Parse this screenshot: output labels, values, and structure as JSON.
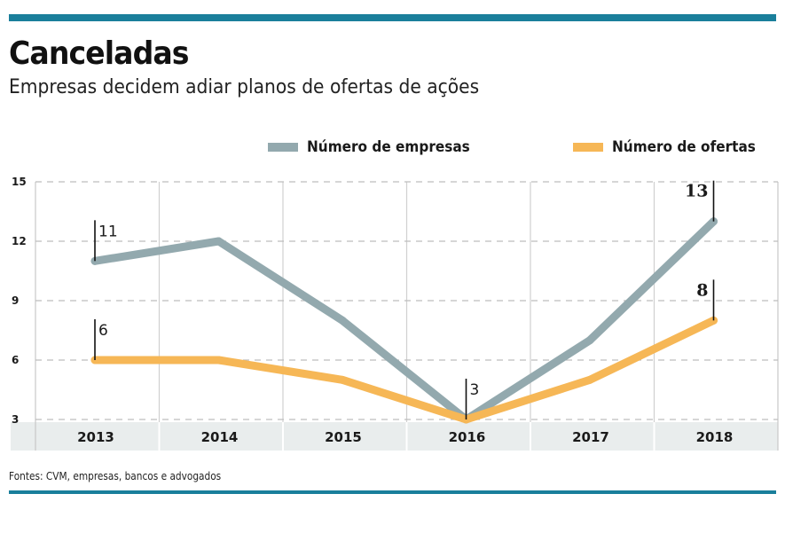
{
  "header": {
    "title": "Canceladas",
    "subtitle": "Empresas decidem adiar planos de ofertas de ações"
  },
  "legend": [
    {
      "label": "Número de empresas",
      "color": "#93a9ae"
    },
    {
      "label": "Número de ofertas",
      "color": "#f6b756"
    }
  ],
  "footer": {
    "source": "Fontes: CVM, empresas, bancos e advogados"
  },
  "colors": {
    "accent_rule": "#1a7f9b",
    "axis_band": "#e9eded",
    "gridline": "#bdbdbd"
  },
  "chart_data": {
    "type": "line",
    "title": "Canceladas",
    "subtitle": "Empresas decidem adiar planos de ofertas de ações",
    "xlabel": "",
    "ylabel": "",
    "categories": [
      "2013",
      "2014",
      "2015",
      "2016",
      "2017",
      "2018"
    ],
    "ylim": [
      3,
      15
    ],
    "yticks": [
      3,
      6,
      9,
      12,
      15
    ],
    "grid": true,
    "legend_position": "top-right",
    "series": [
      {
        "name": "Número de empresas",
        "color": "#93a9ae",
        "values": [
          11,
          12,
          8,
          3,
          7,
          13
        ]
      },
      {
        "name": "Número de ofertas",
        "color": "#f6b756",
        "values": [
          6,
          6,
          5,
          3,
          5,
          8
        ]
      }
    ],
    "annotations": [
      {
        "series": 0,
        "category": "2013",
        "text": "11",
        "style": "light",
        "side": "right"
      },
      {
        "series": 1,
        "category": "2013",
        "text": "6",
        "style": "light",
        "side": "right"
      },
      {
        "series": 0,
        "category": "2016",
        "text": "3",
        "style": "light",
        "side": "right"
      },
      {
        "series": 0,
        "category": "2018",
        "text": "13",
        "style": "bold",
        "side": "left"
      },
      {
        "series": 1,
        "category": "2018",
        "text": "8",
        "style": "bold",
        "side": "left"
      }
    ],
    "source": "Fontes: CVM, empresas, bancos e advogados"
  }
}
